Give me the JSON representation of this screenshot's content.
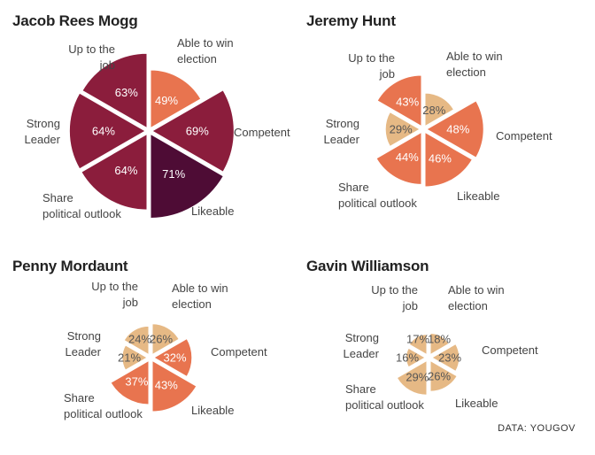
{
  "source": "DATA: YOUGOV",
  "colors": {
    "low": "#e6b985",
    "mid": "#e8744f",
    "high": "#8b1d3c",
    "top": "#4e0c35",
    "text_light": "#ffffff",
    "text_dark": "#555555"
  },
  "chart_data": [
    {
      "type": "pie",
      "title": "Jacob Rees Mogg",
      "categories": [
        "Able to win election",
        "Competent",
        "Likeable",
        "Share political outlook",
        "Strong Leader",
        "Up to the job"
      ],
      "category_labels": [
        [
          "Able to win",
          "election"
        ],
        [
          "Competent"
        ],
        [
          "Likeable"
        ],
        [
          "Share",
          "political outlook"
        ],
        [
          "Strong",
          "Leader"
        ],
        [
          "Up to the",
          "job"
        ]
      ],
      "values": [
        49,
        69,
        71,
        64,
        64,
        63
      ],
      "value_labels": [
        "49%",
        "69%",
        "71%",
        "64%",
        "64%",
        "63%"
      ]
    },
    {
      "type": "pie",
      "title": "Jeremy Hunt",
      "categories": [
        "Able to win election",
        "Competent",
        "Likeable",
        "Share political outlook",
        "Strong Leader",
        "Up to the job"
      ],
      "category_labels": [
        [
          "Able to win",
          "election"
        ],
        [
          "Competent"
        ],
        [
          "Likeable"
        ],
        [
          "Share",
          "political outlook"
        ],
        [
          "Strong",
          "Leader"
        ],
        [
          "Up to the",
          "job"
        ]
      ],
      "values": [
        28,
        48,
        46,
        44,
        29,
        43
      ],
      "value_labels": [
        "28%",
        "48%",
        "46%",
        "44%",
        "29%",
        "43%"
      ]
    },
    {
      "type": "pie",
      "title": "Penny Mordaunt",
      "categories": [
        "Able to win election",
        "Competent",
        "Likeable",
        "Share political outlook",
        "Strong Leader",
        "Up to the job"
      ],
      "category_labels": [
        [
          "Able to win",
          "election"
        ],
        [
          "Competent"
        ],
        [
          "Likeable"
        ],
        [
          "Share",
          "political outlook"
        ],
        [
          "Strong",
          "Leader"
        ],
        [
          "Up to the",
          "job"
        ]
      ],
      "values": [
        26,
        32,
        43,
        37,
        21,
        24
      ],
      "value_labels": [
        "26%",
        "32%",
        "43%",
        "37%",
        "21%",
        "24%"
      ]
    },
    {
      "type": "pie",
      "title": "Gavin Williamson",
      "categories": [
        "Able to win election",
        "Competent",
        "Likeable",
        "Share political outlook",
        "Strong Leader",
        "Up to the job"
      ],
      "category_labels": [
        [
          "Able to win",
          "election"
        ],
        [
          "Competent"
        ],
        [
          "Likeable"
        ],
        [
          "Share",
          "political outlook"
        ],
        [
          "Strong",
          "Leader"
        ],
        [
          "Up to the",
          "job"
        ]
      ],
      "values": [
        18,
        23,
        26,
        29,
        16,
        17
      ],
      "value_labels": [
        "18%",
        "23%",
        "26%",
        "29%",
        "16%",
        "17%"
      ]
    }
  ]
}
